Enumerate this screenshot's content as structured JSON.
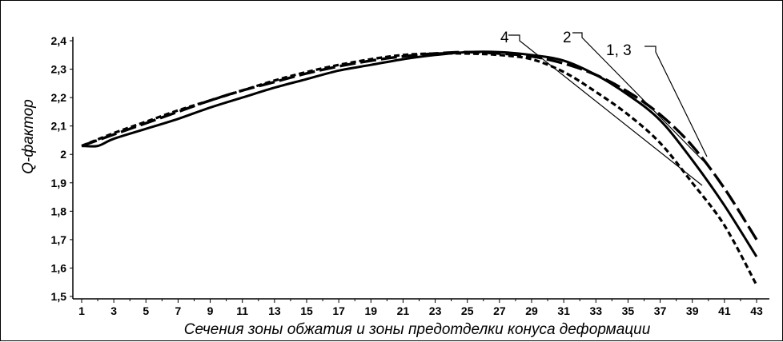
{
  "chart_data": {
    "type": "line",
    "xlabel": "Сечения зоны обжатия и зоны предотделки конуса деформации",
    "ylabel": "Q-фактор",
    "xlim": [
      0,
      44
    ],
    "ylim": [
      1.5,
      2.45
    ],
    "x_ticks": [
      1,
      3,
      5,
      7,
      9,
      11,
      13,
      15,
      17,
      19,
      21,
      23,
      25,
      27,
      29,
      31,
      33,
      35,
      37,
      39,
      41,
      43
    ],
    "y_ticks": [
      1.5,
      1.6,
      1.7,
      1.8,
      1.9,
      2.0,
      2.1,
      2.2,
      2.3,
      2.4
    ],
    "y_tick_labels": [
      "1,5",
      "1,6",
      "1,7",
      "1,8",
      "1,9",
      "2",
      "2,1",
      "2,2",
      "2,3",
      "2,4"
    ],
    "grid": false,
    "series": [
      {
        "name": "1, 3",
        "style": "long-dash",
        "x": [
          1,
          3,
          5,
          7,
          9,
          11,
          13,
          15,
          17,
          19,
          21,
          23,
          25,
          27,
          29,
          31,
          33,
          35,
          37,
          39,
          41,
          43
        ],
        "values": [
          2.03,
          2.07,
          2.11,
          2.15,
          2.19,
          2.225,
          2.255,
          2.285,
          2.31,
          2.33,
          2.345,
          2.355,
          2.36,
          2.355,
          2.345,
          2.32,
          2.28,
          2.22,
          2.14,
          2.03,
          1.88,
          1.7
        ]
      },
      {
        "name": "2",
        "style": "solid-thick",
        "x": [
          1,
          2,
          3,
          5,
          7,
          9,
          11,
          13,
          15,
          17,
          19,
          21,
          23,
          25,
          27,
          29,
          31,
          33,
          35,
          37,
          39,
          41,
          43
        ],
        "values": [
          2.03,
          2.03,
          2.055,
          2.09,
          2.125,
          2.165,
          2.2,
          2.235,
          2.265,
          2.295,
          2.315,
          2.335,
          2.35,
          2.36,
          2.36,
          2.35,
          2.33,
          2.28,
          2.21,
          2.12,
          1.98,
          1.82,
          1.64
        ]
      },
      {
        "name": "4",
        "style": "short-dash",
        "x": [
          1,
          3,
          5,
          7,
          9,
          11,
          13,
          15,
          17,
          19,
          21,
          23,
          25,
          27,
          29,
          31,
          33,
          35,
          37,
          39,
          41,
          43
        ],
        "values": [
          2.03,
          2.075,
          2.115,
          2.155,
          2.19,
          2.225,
          2.26,
          2.29,
          2.315,
          2.335,
          2.35,
          2.355,
          2.355,
          2.35,
          2.335,
          2.29,
          2.22,
          2.14,
          2.04,
          1.9,
          1.75,
          1.54
        ]
      }
    ]
  }
}
